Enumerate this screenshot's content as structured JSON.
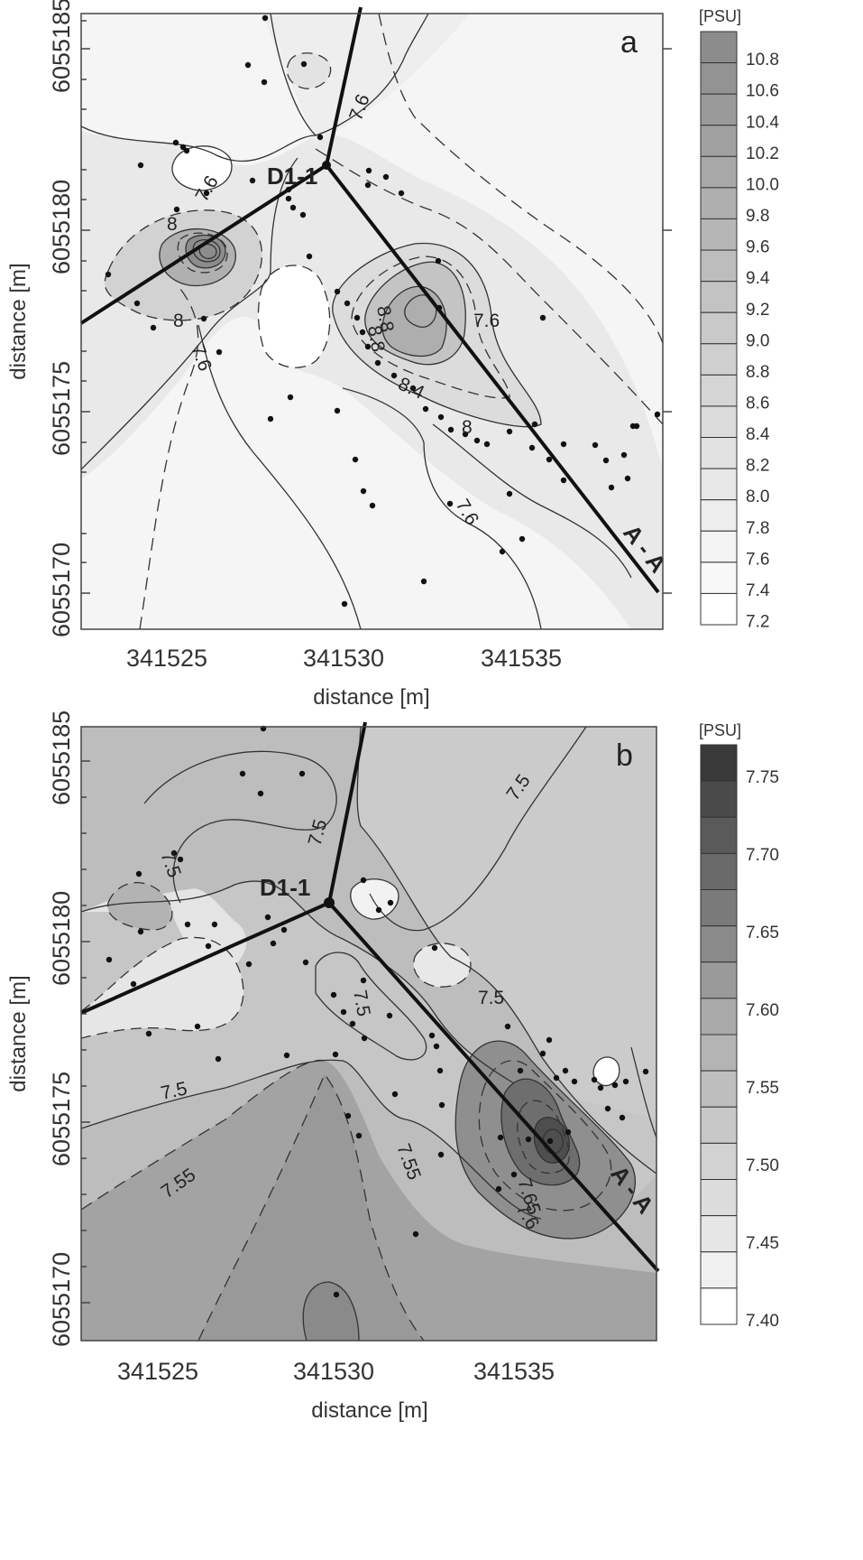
{
  "chart_data": [
    {
      "type": "heatmap",
      "panel_label": "a",
      "xlabel": "distance [m]",
      "ylabel": "distance [m]",
      "x_ticks": [
        "341525",
        "341530",
        "341535"
      ],
      "y_ticks": [
        "6055170",
        "6055175",
        "6055180",
        "6055185"
      ],
      "colorbar_unit": "[PSU]",
      "colorbar_ticks": [
        "10.8",
        "10.6",
        "10.4",
        "10.2",
        "10.0",
        "9.8",
        "9.6",
        "9.4",
        "9.2",
        "9.0",
        "8.8",
        "8.6",
        "8.4",
        "8.2",
        "8.0",
        "7.8",
        "7.6",
        "7.4",
        "7.2"
      ],
      "colorbar_colors": [
        "#8c8c8c",
        "#939393",
        "#9a9a9a",
        "#a1a1a1",
        "#a8a8a8",
        "#afafaf",
        "#b6b6b6",
        "#bdbdbd",
        "#c3c3c3",
        "#c9c9c9",
        "#cfcfcf",
        "#d5d5d5",
        "#dbdbdb",
        "#e1e1e1",
        "#e7e7e7",
        "#ededed",
        "#f3f3f3",
        "#f8f8f8",
        "#ffffff"
      ],
      "contour_labels": [
        "7.6",
        "7.6",
        "7.6",
        "7.6",
        "7.6",
        "8",
        "8",
        "8",
        "8.4",
        "8.8",
        "8.8",
        "8.4"
      ],
      "annotations": [
        "D1-1",
        "A - A"
      ]
    },
    {
      "type": "heatmap",
      "panel_label": "b",
      "xlabel": "distance [m]",
      "ylabel": "distance [m]",
      "x_ticks": [
        "341525",
        "341530",
        "341535"
      ],
      "y_ticks": [
        "6055170",
        "6055175",
        "6055180",
        "6055185"
      ],
      "colorbar_unit": "[PSU]",
      "colorbar_ticks": [
        "7.75",
        "7.70",
        "7.65",
        "7.60",
        "7.55",
        "7.50",
        "7.45",
        "7.40"
      ],
      "colorbar_colors": [
        "#3a3a3a",
        "#4a4a4a",
        "#5a5a5a",
        "#6a6a6a",
        "#7a7a7a",
        "#8a8a8a",
        "#9a9a9a",
        "#aaaaaa",
        "#b4b4b4",
        "#bebebe",
        "#c8c8c8",
        "#d2d2d2",
        "#dcdcdc",
        "#e6e6e6",
        "#f0f0f0",
        "#ffffff"
      ],
      "contour_labels": [
        "7.5",
        "7.5",
        "7.5",
        "7.5",
        "7.5",
        "7.5",
        "7.55",
        "7.55",
        "7.65",
        "7.6"
      ],
      "annotations": [
        "D1-1",
        "A - A"
      ]
    }
  ]
}
